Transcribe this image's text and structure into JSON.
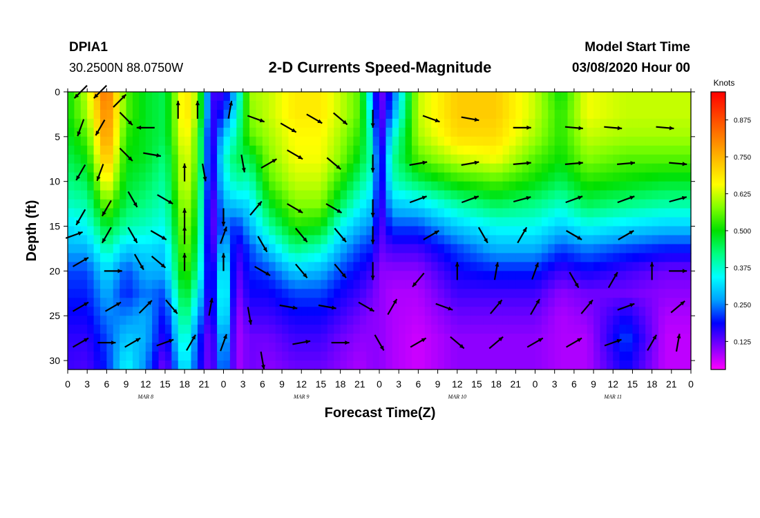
{
  "header": {
    "station": "DPIA1",
    "coords": "30.2500N 88.0750W",
    "title": "2-D Currents Speed-Magnitude",
    "model_label": "Model Start Time",
    "model_time": "03/08/2020 Hour 00"
  },
  "chart_data": {
    "type": "heatmap",
    "title": "2-D Currents Speed-Magnitude",
    "xlabel": "Forecast Time(Z)",
    "ylabel": "Depth (ft)",
    "xlim": [
      0,
      96
    ],
    "ylim": [
      31,
      0
    ],
    "x_ticks": [
      0,
      3,
      6,
      9,
      12,
      15,
      18,
      21,
      24,
      27,
      30,
      33,
      36,
      39,
      42,
      45,
      48,
      51,
      54,
      57,
      60,
      63,
      66,
      69,
      72,
      75,
      78,
      81,
      84,
      87,
      90,
      93,
      96
    ],
    "x_tick_labels": [
      "0",
      "3",
      "6",
      "9",
      "12",
      "15",
      "18",
      "21",
      "0",
      "3",
      "6",
      "9",
      "12",
      "15",
      "18",
      "21",
      "0",
      "3",
      "6",
      "9",
      "12",
      "15",
      "18",
      "21",
      "0",
      "3",
      "6",
      "9",
      "12",
      "15",
      "18",
      "21",
      "0"
    ],
    "y_ticks": [
      0,
      5,
      10,
      15,
      20,
      25,
      30
    ],
    "y_tick_labels": [
      "0",
      "5",
      "10",
      "15",
      "20",
      "25",
      "30"
    ],
    "days": [
      {
        "label": "MAR 8",
        "hour": 12
      },
      {
        "label": "MAR 9",
        "hour": 36
      },
      {
        "label": "MAR 10",
        "hour": 60
      },
      {
        "label": "MAR 11",
        "hour": 84
      }
    ],
    "colorbar": {
      "unit": "Knots",
      "min": 0.03,
      "max": 0.97,
      "ticks": [
        0.125,
        0.25,
        0.375,
        0.5,
        0.625,
        0.75,
        0.875
      ],
      "tick_labels": [
        "0.125",
        "0.250",
        "0.375",
        "0.500",
        "0.625",
        "0.750",
        "0.875"
      ],
      "colors": [
        "#ff00ff",
        "#8000ff",
        "#0000ff",
        "#00a0ff",
        "#00ffff",
        "#00ff80",
        "#00e000",
        "#80ff00",
        "#ffff00",
        "#ffc000",
        "#ff8000",
        "#ff4000",
        "#ff0000"
      ]
    },
    "speed_columns": [
      {
        "t": 0,
        "speeds": [
          0.5,
          0.5,
          0.48,
          0.45,
          0.42,
          0.38,
          0.32,
          0.28,
          0.22,
          0.2,
          0.18,
          0.16,
          0.15
        ]
      },
      {
        "t": 3,
        "speeds": [
          0.62,
          0.6,
          0.55,
          0.5,
          0.45,
          0.4,
          0.35,
          0.28,
          0.22,
          0.2,
          0.18,
          0.16,
          0.14
        ]
      },
      {
        "t": 6,
        "speeds": [
          0.85,
          0.82,
          0.8,
          0.75,
          0.68,
          0.58,
          0.48,
          0.4,
          0.32,
          0.28,
          0.25,
          0.22,
          0.2
        ]
      },
      {
        "t": 9,
        "speeds": [
          0.55,
          0.55,
          0.52,
          0.5,
          0.48,
          0.45,
          0.4,
          0.3,
          0.22,
          0.2,
          0.25,
          0.3,
          0.35
        ]
      },
      {
        "t": 12,
        "speeds": [
          0.48,
          0.48,
          0.48,
          0.48,
          0.45,
          0.42,
          0.38,
          0.32,
          0.28,
          0.25,
          0.28,
          0.28,
          0.25
        ]
      },
      {
        "t": 15,
        "speeds": [
          0.45,
          0.45,
          0.45,
          0.42,
          0.4,
          0.38,
          0.35,
          0.3,
          0.28,
          0.22,
          0.18,
          0.15,
          0.1
        ]
      },
      {
        "t": 18,
        "speeds": [
          0.7,
          0.7,
          0.68,
          0.65,
          0.65,
          0.62,
          0.6,
          0.58,
          0.55,
          0.5,
          0.45,
          0.4,
          0.35
        ]
      },
      {
        "t": 20,
        "speeds": [
          0.6,
          0.6,
          0.55,
          0.55,
          0.52,
          0.5,
          0.48,
          0.45,
          0.42,
          0.35,
          0.28,
          0.22,
          0.2
        ]
      },
      {
        "t": 22,
        "speeds": [
          0.15,
          0.15,
          0.12,
          0.12,
          0.12,
          0.1,
          0.1,
          0.1,
          0.12,
          0.12,
          0.12,
          0.1,
          0.1
        ]
      },
      {
        "t": 24,
        "speeds": [
          0.15,
          0.2,
          0.3,
          0.35,
          0.32,
          0.28,
          0.25,
          0.32,
          0.38,
          0.4,
          0.38,
          0.32,
          0.28
        ]
      },
      {
        "t": 26,
        "speeds": [
          0.3,
          0.35,
          0.4,
          0.45,
          0.4,
          0.3,
          0.2,
          0.15,
          0.12,
          0.1,
          0.08,
          0.08,
          0.08
        ]
      },
      {
        "t": 28,
        "speeds": [
          0.6,
          0.58,
          0.55,
          0.45,
          0.38,
          0.32,
          0.28,
          0.22,
          0.2,
          0.18,
          0.15,
          0.12,
          0.12
        ]
      },
      {
        "t": 31,
        "speeds": [
          0.62,
          0.62,
          0.6,
          0.58,
          0.55,
          0.48,
          0.4,
          0.3,
          0.22,
          0.18,
          0.15,
          0.12,
          0.1
        ]
      },
      {
        "t": 35,
        "speeds": [
          0.68,
          0.68,
          0.66,
          0.65,
          0.62,
          0.58,
          0.52,
          0.42,
          0.3,
          0.22,
          0.18,
          0.15,
          0.12
        ]
      },
      {
        "t": 39,
        "speeds": [
          0.68,
          0.68,
          0.66,
          0.65,
          0.62,
          0.58,
          0.5,
          0.38,
          0.28,
          0.22,
          0.18,
          0.15,
          0.12
        ]
      },
      {
        "t": 42,
        "speeds": [
          0.62,
          0.62,
          0.6,
          0.58,
          0.52,
          0.45,
          0.35,
          0.28,
          0.22,
          0.18,
          0.15,
          0.12,
          0.1
        ]
      },
      {
        "t": 45,
        "speeds": [
          0.55,
          0.55,
          0.52,
          0.48,
          0.42,
          0.35,
          0.28,
          0.22,
          0.18,
          0.15,
          0.12,
          0.1,
          0.08
        ]
      },
      {
        "t": 47,
        "speeds": [
          0.25,
          0.3,
          0.35,
          0.38,
          0.35,
          0.3,
          0.25,
          0.2,
          0.15,
          0.12,
          0.1,
          0.1,
          0.1
        ]
      },
      {
        "t": 48,
        "speeds": [
          0.1,
          0.1,
          0.1,
          0.12,
          0.12,
          0.12,
          0.12,
          0.12,
          0.1,
          0.1,
          0.1,
          0.1,
          0.1
        ]
      },
      {
        "t": 50,
        "speeds": [
          0.2,
          0.25,
          0.35,
          0.4,
          0.38,
          0.3,
          0.22,
          0.15,
          0.1,
          0.08,
          0.08,
          0.08,
          0.08
        ]
      },
      {
        "t": 54,
        "speeds": [
          0.62,
          0.62,
          0.6,
          0.55,
          0.45,
          0.32,
          0.22,
          0.15,
          0.1,
          0.08,
          0.07,
          0.06,
          0.06
        ]
      },
      {
        "t": 60,
        "speeds": [
          0.72,
          0.72,
          0.7,
          0.62,
          0.52,
          0.4,
          0.3,
          0.22,
          0.18,
          0.15,
          0.12,
          0.1,
          0.1
        ]
      },
      {
        "t": 66,
        "speeds": [
          0.72,
          0.72,
          0.7,
          0.65,
          0.55,
          0.45,
          0.35,
          0.28,
          0.2,
          0.15,
          0.12,
          0.1,
          0.1
        ]
      },
      {
        "t": 72,
        "speeds": [
          0.62,
          0.62,
          0.6,
          0.55,
          0.5,
          0.42,
          0.35,
          0.28,
          0.2,
          0.15,
          0.12,
          0.1,
          0.1
        ]
      },
      {
        "t": 76,
        "speeds": [
          0.5,
          0.52,
          0.52,
          0.5,
          0.45,
          0.38,
          0.3,
          0.22,
          0.15,
          0.1,
          0.08,
          0.08,
          0.08
        ]
      },
      {
        "t": 80,
        "speeds": [
          0.65,
          0.65,
          0.62,
          0.58,
          0.52,
          0.45,
          0.35,
          0.25,
          0.18,
          0.12,
          0.1,
          0.08,
          0.08
        ]
      },
      {
        "t": 86,
        "speeds": [
          0.62,
          0.62,
          0.6,
          0.55,
          0.5,
          0.42,
          0.32,
          0.22,
          0.15,
          0.12,
          0.18,
          0.22,
          0.18
        ]
      },
      {
        "t": 92,
        "speeds": [
          0.62,
          0.62,
          0.6,
          0.55,
          0.48,
          0.4,
          0.3,
          0.2,
          0.12,
          0.1,
          0.08,
          0.07,
          0.07
        ]
      },
      {
        "t": 96,
        "speeds": [
          0.62,
          0.62,
          0.6,
          0.55,
          0.48,
          0.4,
          0.3,
          0.2,
          0.12,
          0.1,
          0.08,
          0.07,
          0.07
        ]
      }
    ],
    "depth_levels": [
      0,
      2.5,
      5,
      7.5,
      10,
      12.5,
      15,
      17.5,
      20,
      22.5,
      25,
      27.5,
      31
    ],
    "vectors": [
      {
        "t": 2,
        "d": 0,
        "dir": 225
      },
      {
        "t": 5,
        "d": 0,
        "dir": 225
      },
      {
        "t": 8,
        "d": 1,
        "dir": 45
      },
      {
        "t": 2,
        "d": 4,
        "dir": 200
      },
      {
        "t": 5,
        "d": 4,
        "dir": 210
      },
      {
        "t": 9,
        "d": 3,
        "dir": 135
      },
      {
        "t": 12,
        "d": 4,
        "dir": 270
      },
      {
        "t": 17,
        "d": 2,
        "dir": 0
      },
      {
        "t": 20,
        "d": 2,
        "dir": 0
      },
      {
        "t": 25,
        "d": 2,
        "dir": 10
      },
      {
        "t": 29,
        "d": 3,
        "dir": 110
      },
      {
        "t": 34,
        "d": 4,
        "dir": 120
      },
      {
        "t": 38,
        "d": 3,
        "dir": 120
      },
      {
        "t": 42,
        "d": 3,
        "dir": 130
      },
      {
        "t": 47,
        "d": 3,
        "dir": 180
      },
      {
        "t": 56,
        "d": 3,
        "dir": 110
      },
      {
        "t": 62,
        "d": 3,
        "dir": 100
      },
      {
        "t": 70,
        "d": 4,
        "dir": 90
      },
      {
        "t": 78,
        "d": 4,
        "dir": 95
      },
      {
        "t": 84,
        "d": 4,
        "dir": 95
      },
      {
        "t": 92,
        "d": 4,
        "dir": 95
      },
      {
        "t": 2,
        "d": 9,
        "dir": 210
      },
      {
        "t": 5,
        "d": 9,
        "dir": 200
      },
      {
        "t": 9,
        "d": 7,
        "dir": 135
      },
      {
        "t": 13,
        "d": 7,
        "dir": 100
      },
      {
        "t": 18,
        "d": 9,
        "dir": 0
      },
      {
        "t": 21,
        "d": 9,
        "dir": 170
      },
      {
        "t": 27,
        "d": 8,
        "dir": 170
      },
      {
        "t": 31,
        "d": 8,
        "dir": 60
      },
      {
        "t": 35,
        "d": 7,
        "dir": 120
      },
      {
        "t": 41,
        "d": 8,
        "dir": 130
      },
      {
        "t": 47,
        "d": 8,
        "dir": 180
      },
      {
        "t": 54,
        "d": 8,
        "dir": 80
      },
      {
        "t": 62,
        "d": 8,
        "dir": 80
      },
      {
        "t": 70,
        "d": 8,
        "dir": 85
      },
      {
        "t": 78,
        "d": 8,
        "dir": 85
      },
      {
        "t": 86,
        "d": 8,
        "dir": 85
      },
      {
        "t": 94,
        "d": 8,
        "dir": 95
      },
      {
        "t": 2,
        "d": 14,
        "dir": 210
      },
      {
        "t": 6,
        "d": 13,
        "dir": 210
      },
      {
        "t": 10,
        "d": 12,
        "dir": 150
      },
      {
        "t": 15,
        "d": 12,
        "dir": 120
      },
      {
        "t": 18,
        "d": 14,
        "dir": 0
      },
      {
        "t": 24,
        "d": 14,
        "dir": 180
      },
      {
        "t": 29,
        "d": 13,
        "dir": 40
      },
      {
        "t": 35,
        "d": 13,
        "dir": 120
      },
      {
        "t": 41,
        "d": 13,
        "dir": 120
      },
      {
        "t": 47,
        "d": 13,
        "dir": 180
      },
      {
        "t": 54,
        "d": 12,
        "dir": 70
      },
      {
        "t": 62,
        "d": 12,
        "dir": 70
      },
      {
        "t": 70,
        "d": 12,
        "dir": 75
      },
      {
        "t": 78,
        "d": 12,
        "dir": 70
      },
      {
        "t": 86,
        "d": 12,
        "dir": 70
      },
      {
        "t": 94,
        "d": 12,
        "dir": 75
      },
      {
        "t": 1,
        "d": 16,
        "dir": 70
      },
      {
        "t": 6,
        "d": 16,
        "dir": 210
      },
      {
        "t": 10,
        "d": 16,
        "dir": 150
      },
      {
        "t": 14,
        "d": 16,
        "dir": 120
      },
      {
        "t": 18,
        "d": 16,
        "dir": 0
      },
      {
        "t": 24,
        "d": 16,
        "dir": 20
      },
      {
        "t": 30,
        "d": 17,
        "dir": 150
      },
      {
        "t": 36,
        "d": 16,
        "dir": 140
      },
      {
        "t": 42,
        "d": 16,
        "dir": 140
      },
      {
        "t": 47,
        "d": 16,
        "dir": 180
      },
      {
        "t": 56,
        "d": 16,
        "dir": 60
      },
      {
        "t": 64,
        "d": 16,
        "dir": 150
      },
      {
        "t": 70,
        "d": 16,
        "dir": 30
      },
      {
        "t": 78,
        "d": 16,
        "dir": 120
      },
      {
        "t": 86,
        "d": 16,
        "dir": 60
      },
      {
        "t": 2,
        "d": 19,
        "dir": 60
      },
      {
        "t": 7,
        "d": 20,
        "dir": 90
      },
      {
        "t": 11,
        "d": 19,
        "dir": 150
      },
      {
        "t": 14,
        "d": 19,
        "dir": 130
      },
      {
        "t": 18,
        "d": 19,
        "dir": 0
      },
      {
        "t": 24,
        "d": 19,
        "dir": 0
      },
      {
        "t": 30,
        "d": 20,
        "dir": 120
      },
      {
        "t": 36,
        "d": 20,
        "dir": 140
      },
      {
        "t": 42,
        "d": 20,
        "dir": 140
      },
      {
        "t": 47,
        "d": 20,
        "dir": 180
      },
      {
        "t": 54,
        "d": 21,
        "dir": 220
      },
      {
        "t": 60,
        "d": 20,
        "dir": 0
      },
      {
        "t": 66,
        "d": 20,
        "dir": 10
      },
      {
        "t": 72,
        "d": 20,
        "dir": 20
      },
      {
        "t": 78,
        "d": 21,
        "dir": 150
      },
      {
        "t": 84,
        "d": 21,
        "dir": 30
      },
      {
        "t": 90,
        "d": 20,
        "dir": 0
      },
      {
        "t": 94,
        "d": 20,
        "dir": 90
      },
      {
        "t": 2,
        "d": 24,
        "dir": 60
      },
      {
        "t": 7,
        "d": 24,
        "dir": 60
      },
      {
        "t": 12,
        "d": 24,
        "dir": 45
      },
      {
        "t": 16,
        "d": 24,
        "dir": 140
      },
      {
        "t": 22,
        "d": 24,
        "dir": 10
      },
      {
        "t": 28,
        "d": 25,
        "dir": 170
      },
      {
        "t": 34,
        "d": 24,
        "dir": 100
      },
      {
        "t": 40,
        "d": 24,
        "dir": 100
      },
      {
        "t": 46,
        "d": 24,
        "dir": 120
      },
      {
        "t": 50,
        "d": 24,
        "dir": 30
      },
      {
        "t": 58,
        "d": 24,
        "dir": 110
      },
      {
        "t": 66,
        "d": 24,
        "dir": 40
      },
      {
        "t": 72,
        "d": 24,
        "dir": 30
      },
      {
        "t": 80,
        "d": 24,
        "dir": 40
      },
      {
        "t": 86,
        "d": 24,
        "dir": 70
      },
      {
        "t": 94,
        "d": 24,
        "dir": 50
      },
      {
        "t": 2,
        "d": 28,
        "dir": 60
      },
      {
        "t": 6,
        "d": 28,
        "dir": 90
      },
      {
        "t": 10,
        "d": 28,
        "dir": 60
      },
      {
        "t": 15,
        "d": 28,
        "dir": 70
      },
      {
        "t": 19,
        "d": 28,
        "dir": 30
      },
      {
        "t": 24,
        "d": 28,
        "dir": 20
      },
      {
        "t": 30,
        "d": 30,
        "dir": 170
      },
      {
        "t": 36,
        "d": 28,
        "dir": 80
      },
      {
        "t": 42,
        "d": 28,
        "dir": 90
      },
      {
        "t": 48,
        "d": 28,
        "dir": 150
      },
      {
        "t": 54,
        "d": 28,
        "dir": 60
      },
      {
        "t": 60,
        "d": 28,
        "dir": 130
      },
      {
        "t": 66,
        "d": 28,
        "dir": 50
      },
      {
        "t": 72,
        "d": 28,
        "dir": 60
      },
      {
        "t": 78,
        "d": 28,
        "dir": 60
      },
      {
        "t": 84,
        "d": 28,
        "dir": 70
      },
      {
        "t": 90,
        "d": 28,
        "dir": 30
      },
      {
        "t": 94,
        "d": 28,
        "dir": 10
      }
    ]
  }
}
